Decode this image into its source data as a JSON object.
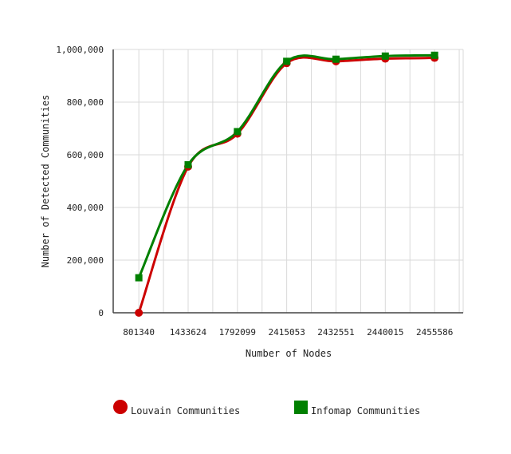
{
  "chart_data": {
    "type": "line",
    "categories": [
      "801340",
      "1433624",
      "1792099",
      "2415053",
      "2432551",
      "2440015",
      "2455586"
    ],
    "xlabel": "Number of Nodes",
    "ylabel": "Number of Detected Communities",
    "ylim": [
      0,
      1000000
    ],
    "yticks": [
      0,
      200000,
      400000,
      600000,
      800000,
      1000000
    ],
    "ytick_labels": [
      "0",
      "200,000",
      "400,000",
      "600,000",
      "800,000",
      "1,000,000"
    ],
    "grid": true,
    "legend_position": "bottom",
    "series": [
      {
        "name": "Louvain Communities",
        "color": "#cc0000",
        "marker": "circle",
        "values": [
          0,
          555000,
          680000,
          948000,
          955000,
          965000,
          968000
        ]
      },
      {
        "name": "Infomap Communities",
        "color": "#008000",
        "marker": "square",
        "values": [
          133000,
          562000,
          688000,
          955000,
          963000,
          975000,
          978000
        ]
      }
    ]
  }
}
